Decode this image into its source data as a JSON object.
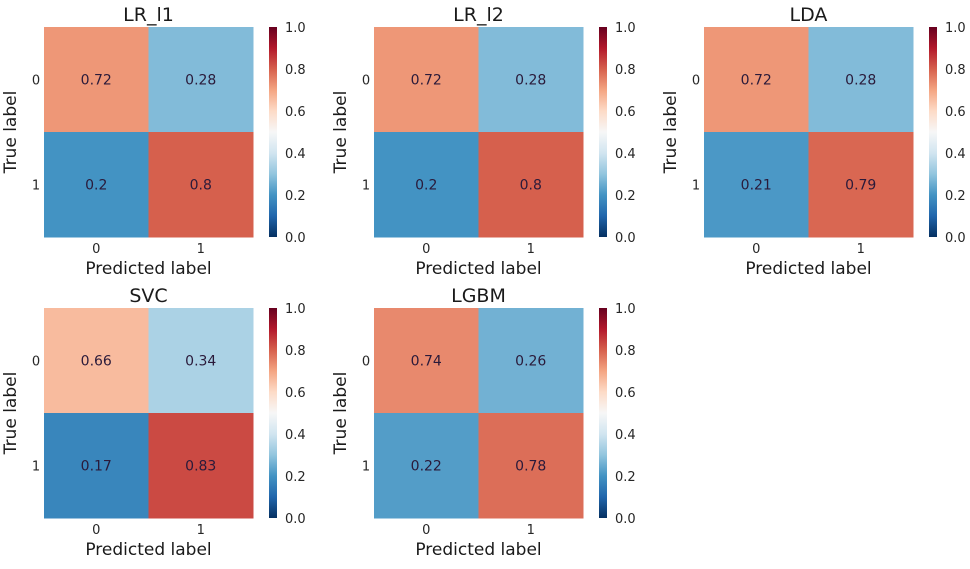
{
  "colorbar": {
    "ticks": [
      "0.0",
      "0.2",
      "0.4",
      "0.6",
      "0.8",
      "1.0"
    ],
    "colormap": "RdBu_r",
    "range": [
      0,
      1
    ]
  },
  "chart_data": [
    {
      "type": "heatmap",
      "title": "LR_l1",
      "xlabel": "Predicted label",
      "ylabel": "True label",
      "x_ticks": [
        "0",
        "1"
      ],
      "y_ticks": [
        "0",
        "1"
      ],
      "values": [
        [
          0.72,
          0.28
        ],
        [
          0.2,
          0.8
        ]
      ],
      "labels": [
        [
          "0.72",
          "0.28"
        ],
        [
          "0.2",
          "0.8"
        ]
      ],
      "vmin": 0,
      "vmax": 1
    },
    {
      "type": "heatmap",
      "title": "LR_l2",
      "xlabel": "Predicted label",
      "ylabel": "True label",
      "x_ticks": [
        "0",
        "1"
      ],
      "y_ticks": [
        "0",
        "1"
      ],
      "values": [
        [
          0.72,
          0.28
        ],
        [
          0.2,
          0.8
        ]
      ],
      "labels": [
        [
          "0.72",
          "0.28"
        ],
        [
          "0.2",
          "0.8"
        ]
      ],
      "vmin": 0,
      "vmax": 1
    },
    {
      "type": "heatmap",
      "title": "LDA",
      "xlabel": "Predicted label",
      "ylabel": "True label",
      "x_ticks": [
        "0",
        "1"
      ],
      "y_ticks": [
        "0",
        "1"
      ],
      "values": [
        [
          0.72,
          0.28
        ],
        [
          0.21,
          0.79
        ]
      ],
      "labels": [
        [
          "0.72",
          "0.28"
        ],
        [
          "0.21",
          "0.79"
        ]
      ],
      "vmin": 0,
      "vmax": 1
    },
    {
      "type": "heatmap",
      "title": "SVC",
      "xlabel": "Predicted label",
      "ylabel": "True label",
      "x_ticks": [
        "0",
        "1"
      ],
      "y_ticks": [
        "0",
        "1"
      ],
      "values": [
        [
          0.66,
          0.34
        ],
        [
          0.17,
          0.83
        ]
      ],
      "labels": [
        [
          "0.66",
          "0.34"
        ],
        [
          "0.17",
          "0.83"
        ]
      ],
      "vmin": 0,
      "vmax": 1
    },
    {
      "type": "heatmap",
      "title": "LGBM",
      "xlabel": "Predicted label",
      "ylabel": "True label",
      "x_ticks": [
        "0",
        "1"
      ],
      "y_ticks": [
        "0",
        "1"
      ],
      "values": [
        [
          0.74,
          0.26
        ],
        [
          0.22,
          0.78
        ]
      ],
      "labels": [
        [
          "0.74",
          "0.26"
        ],
        [
          "0.22",
          "0.78"
        ]
      ],
      "vmin": 0,
      "vmax": 1
    }
  ]
}
